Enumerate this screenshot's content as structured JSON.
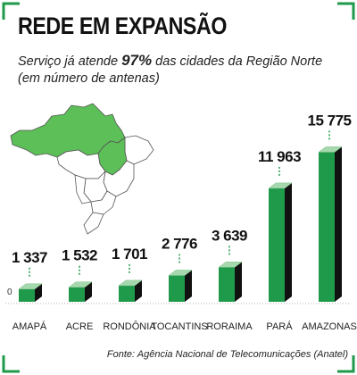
{
  "chart_data": {
    "type": "bar3d",
    "title": "REDE EM EXPANSÃO",
    "subtitle": {
      "before": "Serviço já atende ",
      "highlight": "97%",
      "after": " das cidades da Região Norte (em número de antenas)"
    },
    "categories": [
      "AMAPÁ",
      "ACRE",
      "RONDÔNIA",
      "TOCANTINS",
      "RORAIMA",
      "PARÁ",
      "AMAZONAS"
    ],
    "values": [
      1337,
      1532,
      1701,
      2776,
      3639,
      11963,
      15775
    ],
    "value_labels": [
      "1 337",
      "1 532",
      "1 701",
      "2 776",
      "3 639",
      "11 963",
      "15 775"
    ],
    "color": "#1f9a4b",
    "ylim": [
      0,
      16000
    ],
    "yticks": [
      0
    ],
    "source": "Fonte: Agência Nacional de Telecomunicações (Anatel)"
  }
}
